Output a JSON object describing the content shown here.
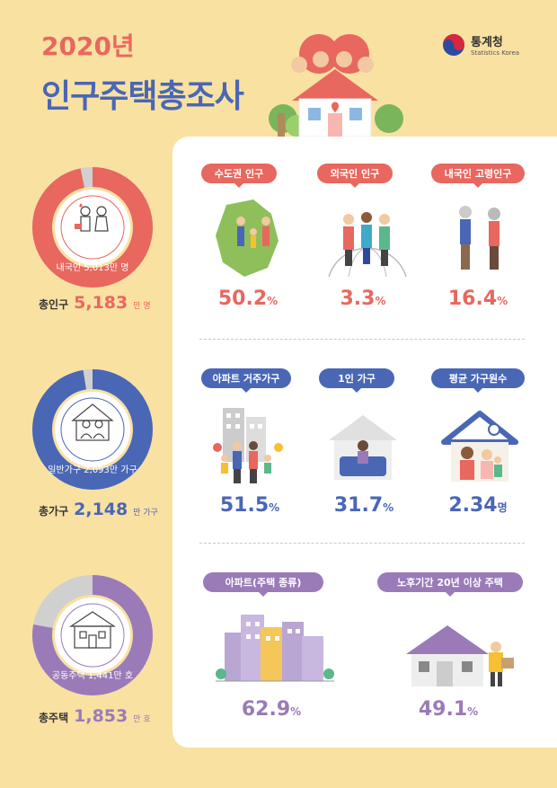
{
  "header": {
    "year": "2020년",
    "title": "인구주택총조사",
    "logo_name": "통계청",
    "logo_sub": "Statistics Korea"
  },
  "colors": {
    "background": "#f9e1a2",
    "red": "#e8675f",
    "blue": "#4a67b5",
    "purple": "#9a7bb8",
    "gray": "#d0d0d0"
  },
  "rings": [
    {
      "inner_label": "내국인 5,013만 명",
      "label": "총인구",
      "value": "5,183",
      "unit": "만 명",
      "fill_fraction": 0.967,
      "icon": "family-icon"
    },
    {
      "inner_label": "일반가구 2,093만 가구",
      "label": "총가구",
      "value": "2,148",
      "unit": "만 가구",
      "fill_fraction": 0.974,
      "icon": "house-family-icon"
    },
    {
      "inner_label": "공동주택 1,441만 호",
      "label": "총주택",
      "value": "1,853",
      "unit": "만 호",
      "fill_fraction": 0.778,
      "icon": "house-icon"
    }
  ],
  "stats": {
    "row1": [
      {
        "label": "수도권 인구",
        "value": "50.2",
        "unit": "%"
      },
      {
        "label": "외국인 인구",
        "value": "3.3",
        "unit": "%"
      },
      {
        "label": "내국인 고령인구",
        "value": "16.4",
        "unit": "%"
      }
    ],
    "row2": [
      {
        "label": "아파트 거주가구",
        "value": "51.5",
        "unit": "%"
      },
      {
        "label": "1인 가구",
        "value": "31.7",
        "unit": "%"
      },
      {
        "label": "평균 가구원수",
        "value": "2.34",
        "unit": "명"
      }
    ],
    "row3": [
      {
        "label": "아파트(주택 종류)",
        "value": "62.9",
        "unit": "%"
      },
      {
        "label": "노후기간 20년 이상 주택",
        "value": "49.1",
        "unit": "%"
      }
    ]
  }
}
